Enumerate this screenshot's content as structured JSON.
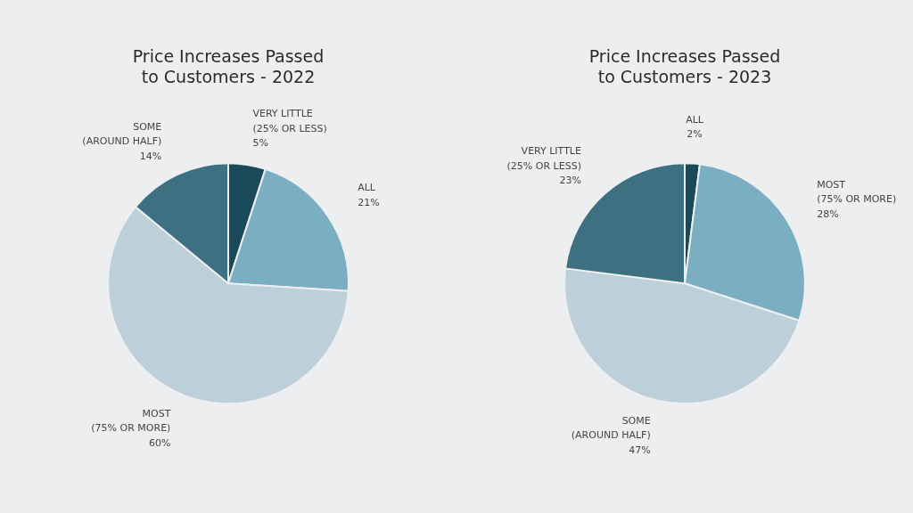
{
  "chart_data": [
    {
      "type": "pie",
      "title": "Price Increases Passed\nto Customers - 2022",
      "categories": [
        "VERY LITTLE\n(25% OR LESS)",
        "ALL",
        "MOST\n(75% OR MORE)",
        "SOME\n(AROUND HALF)"
      ],
      "values": [
        5,
        21,
        60,
        14
      ],
      "value_labels": [
        "5%",
        "21%",
        "60%",
        "14%"
      ],
      "colors": [
        "#1a4a5a",
        "#7aafc2",
        "#bdd0da",
        "#3d7080"
      ],
      "data_labels": true
    },
    {
      "type": "pie",
      "title": "Price Increases Passed\nto Customers - 2023",
      "categories": [
        "ALL",
        "MOST\n(75% OR MORE)",
        "SOME\n(AROUND HALF)",
        "VERY LITTLE\n(25% OR LESS)"
      ],
      "values": [
        2,
        28,
        47,
        23
      ],
      "value_labels": [
        "2%",
        "28%",
        "47%",
        "23%"
      ],
      "colors": [
        "#1a4a5a",
        "#7aafc2",
        "#bdd0da",
        "#3d7080"
      ],
      "data_labels": true
    }
  ]
}
